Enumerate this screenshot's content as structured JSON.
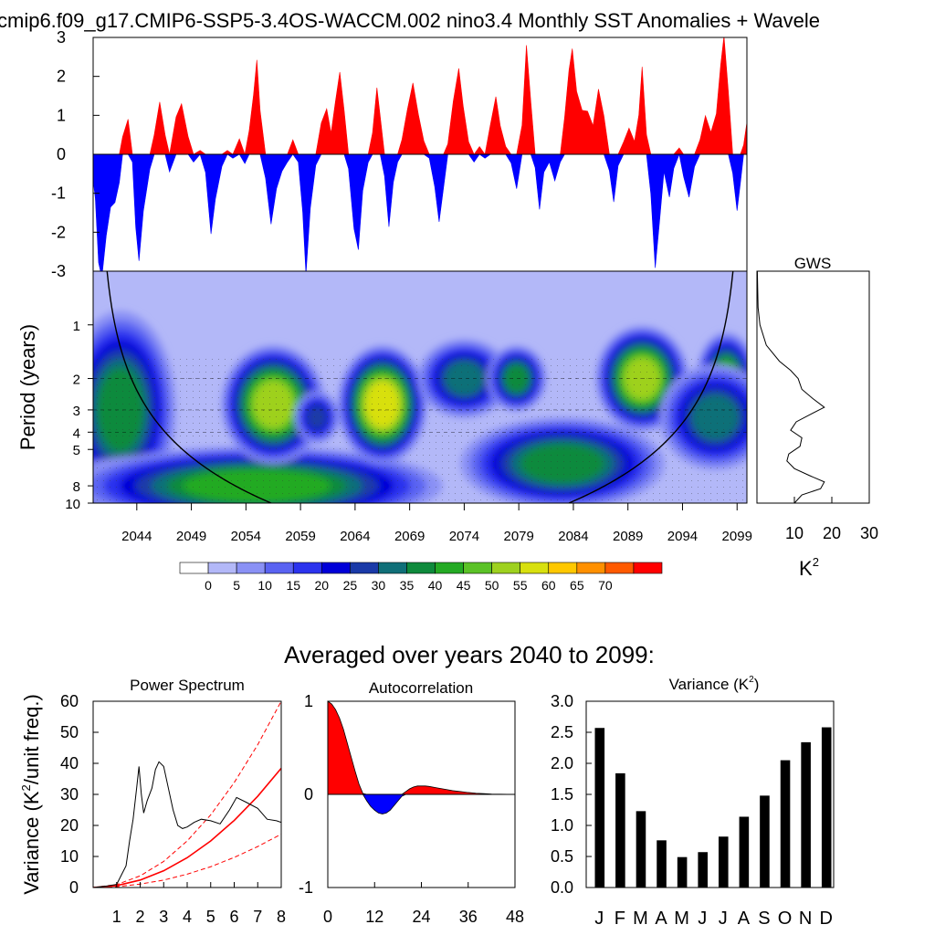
{
  "title": "cmip6.f09_g17.CMIP6-SSP5-3.4OS-WACCM.002 nino3.4 Monthly SST Anomalies + Wavele",
  "colors": {
    "positive": "#ff0000",
    "negative": "#0000ff",
    "wavelet_bg": "#b3b8f8"
  },
  "chart_data": [
    {
      "name": "sst-anomaly-timeseries",
      "type": "area",
      "xlim": [
        2040,
        2099.9
      ],
      "ylim": [
        -3,
        3
      ],
      "yticks": [
        "3",
        "2",
        "1",
        "0",
        "-1",
        "-2",
        "-3"
      ],
      "yticks_values": [
        3,
        2,
        1,
        0,
        -1,
        -2,
        -3
      ],
      "anchors": [
        [
          2040.0,
          -0.7
        ],
        [
          2040.2,
          -1.2
        ],
        [
          2040.5,
          -2.8
        ],
        [
          2040.8,
          -3.0
        ],
        [
          2041.2,
          -2.2
        ],
        [
          2041.6,
          -1.4
        ],
        [
          2042.0,
          -1.2
        ],
        [
          2042.4,
          -0.6
        ],
        [
          2042.7,
          0.3
        ],
        [
          2043.2,
          0.9
        ],
        [
          2043.6,
          -0.2
        ],
        [
          2043.9,
          -1.8
        ],
        [
          2044.2,
          -2.9
        ],
        [
          2044.6,
          -1.4
        ],
        [
          2045.2,
          -0.3
        ],
        [
          2045.6,
          0.5
        ],
        [
          2046.1,
          1.2
        ],
        [
          2046.6,
          0.6
        ],
        [
          2047.0,
          -0.4
        ],
        [
          2047.6,
          0.9
        ],
        [
          2048.1,
          1.2
        ],
        [
          2048.7,
          0.6
        ],
        [
          2049.2,
          -0.2
        ],
        [
          2049.8,
          0.1
        ],
        [
          2050.3,
          -0.5
        ],
        [
          2050.8,
          -1.9
        ],
        [
          2051.2,
          -1.2
        ],
        [
          2051.8,
          -0.4
        ],
        [
          2052.3,
          0.1
        ],
        [
          2052.8,
          -0.1
        ],
        [
          2053.4,
          0.3
        ],
        [
          2053.9,
          -0.3
        ],
        [
          2054.3,
          0.7
        ],
        [
          2054.7,
          1.6
        ],
        [
          2055.0,
          2.3
        ],
        [
          2055.3,
          1.1
        ],
        [
          2055.8,
          -0.5
        ],
        [
          2056.3,
          -1.8
        ],
        [
          2056.8,
          -1.0
        ],
        [
          2057.3,
          -0.4
        ],
        [
          2057.8,
          -0.2
        ],
        [
          2058.3,
          0.3
        ],
        [
          2058.8,
          -0.2
        ],
        [
          2059.2,
          -1.4
        ],
        [
          2059.5,
          -3.0
        ],
        [
          2059.9,
          -1.5
        ],
        [
          2060.4,
          -0.3
        ],
        [
          2060.9,
          0.9
        ],
        [
          2061.4,
          1.2
        ],
        [
          2061.8,
          0.4
        ],
        [
          2062.2,
          1.4
        ],
        [
          2062.6,
          2.2
        ],
        [
          2063.0,
          1.1
        ],
        [
          2063.4,
          -0.5
        ],
        [
          2063.9,
          -1.8
        ],
        [
          2064.3,
          -2.4
        ],
        [
          2064.7,
          -1.0
        ],
        [
          2065.2,
          -0.3
        ],
        [
          2065.6,
          0.7
        ],
        [
          2066.0,
          1.7
        ],
        [
          2066.3,
          0.9
        ],
        [
          2066.7,
          -0.6
        ],
        [
          2067.1,
          -1.7
        ],
        [
          2067.5,
          -0.8
        ],
        [
          2067.9,
          -0.2
        ],
        [
          2068.3,
          0.4
        ],
        [
          2068.8,
          1.3
        ],
        [
          2069.3,
          1.7
        ],
        [
          2069.8,
          1.0
        ],
        [
          2070.3,
          0.4
        ],
        [
          2070.8,
          -0.1
        ],
        [
          2071.3,
          -1.0
        ],
        [
          2071.7,
          -1.7
        ],
        [
          2072.1,
          -0.8
        ],
        [
          2072.5,
          0.3
        ],
        [
          2073.0,
          1.2
        ],
        [
          2073.5,
          2.3
        ],
        [
          2073.9,
          1.3
        ],
        [
          2074.4,
          0.3
        ],
        [
          2074.9,
          -0.2
        ],
        [
          2075.4,
          0.2
        ],
        [
          2075.9,
          -0.1
        ],
        [
          2076.4,
          0.7
        ],
        [
          2076.9,
          1.4
        ],
        [
          2077.3,
          0.9
        ],
        [
          2077.8,
          0.2
        ],
        [
          2078.3,
          -0.3
        ],
        [
          2078.8,
          -0.9
        ],
        [
          2079.3,
          0.9
        ],
        [
          2079.7,
          2.7
        ],
        [
          2080.1,
          1.3
        ],
        [
          2080.5,
          -0.3
        ],
        [
          2080.9,
          -1.3
        ],
        [
          2081.3,
          -0.6
        ],
        [
          2081.8,
          -0.2
        ],
        [
          2082.3,
          -0.6
        ],
        [
          2082.8,
          -0.2
        ],
        [
          2083.2,
          0.8
        ],
        [
          2083.6,
          2.2
        ],
        [
          2083.9,
          2.8
        ],
        [
          2084.3,
          1.6
        ],
        [
          2084.8,
          1.0
        ],
        [
          2085.3,
          1.2
        ],
        [
          2085.8,
          0.8
        ],
        [
          2086.3,
          1.6
        ],
        [
          2086.8,
          0.9
        ],
        [
          2087.3,
          -0.3
        ],
        [
          2087.7,
          -1.2
        ],
        [
          2088.1,
          -0.4
        ],
        [
          2088.6,
          0.3
        ],
        [
          2089.1,
          0.8
        ],
        [
          2089.6,
          0.3
        ],
        [
          2090.0,
          0.9
        ],
        [
          2090.3,
          2.3
        ],
        [
          2090.7,
          0.6
        ],
        [
          2091.1,
          -1.1
        ],
        [
          2091.5,
          -3.0
        ],
        [
          2091.9,
          -1.6
        ],
        [
          2092.3,
          -0.4
        ],
        [
          2092.8,
          -1.2
        ],
        [
          2093.2,
          -0.4
        ],
        [
          2093.7,
          0.3
        ],
        [
          2094.1,
          -0.6
        ],
        [
          2094.6,
          -1.2
        ],
        [
          2095.1,
          -0.3
        ],
        [
          2095.6,
          0.5
        ],
        [
          2096.1,
          0.9
        ],
        [
          2096.6,
          0.5
        ],
        [
          2097.1,
          1.1
        ],
        [
          2097.5,
          2.4
        ],
        [
          2097.8,
          2.9
        ],
        [
          2098.2,
          1.6
        ],
        [
          2098.6,
          -0.4
        ],
        [
          2099.0,
          -1.4
        ],
        [
          2099.3,
          -0.9
        ],
        [
          2099.6,
          0.3
        ],
        [
          2099.9,
          0.9
        ]
      ]
    },
    {
      "name": "wavelet-power-spectrum",
      "type": "heatmap",
      "ylabel": "Period (years)",
      "yticks": [
        "1",
        "2",
        "3",
        "4",
        "5",
        "8",
        "10"
      ],
      "yticks_values": [
        1,
        2,
        3,
        4,
        5,
        8,
        10
      ],
      "ylim": [
        0.5,
        10
      ],
      "xticks": [
        "2044",
        "2049",
        "2054",
        "2059",
        "2064",
        "2069",
        "2074",
        "2079",
        "2084",
        "2089",
        "2094",
        "2099"
      ],
      "xticks_values": [
        2044,
        2049,
        2054,
        2059,
        2064,
        2069,
        2074,
        2079,
        2084,
        2089,
        2094,
        2099
      ],
      "colorbar_labels": [
        "0",
        "5",
        "10",
        "15",
        "20",
        "25",
        "30",
        "35",
        "40",
        "45",
        "50",
        "55",
        "60",
        "65",
        "70"
      ],
      "colorbar_colors": [
        "#ffffff",
        "#b3b8f8",
        "#8a91f5",
        "#5a63f2",
        "#2b33ee",
        "#0000d8",
        "#1a3aa8",
        "#106f78",
        "#0f8a3c",
        "#24aa24",
        "#5bc227",
        "#9ed11f",
        "#d8e00f",
        "#ffc800",
        "#ff9000",
        "#ff5a00",
        "#ff0000"
      ],
      "blobs": [
        {
          "x": 2042.5,
          "period": 3.0,
          "rx": 3.0,
          "ry": 0.3,
          "level": 8
        },
        {
          "x": 2045.5,
          "period": 9.0,
          "rx": 6.0,
          "ry": 0.12,
          "level": 8
        },
        {
          "x": 2055.0,
          "period": 8.0,
          "rx": 10.0,
          "ry": 0.12,
          "level": 9
        },
        {
          "x": 2056.5,
          "period": 2.8,
          "rx": 2.8,
          "ry": 0.18,
          "level": 11
        },
        {
          "x": 2060.5,
          "period": 3.3,
          "rx": 1.2,
          "ry": 0.08,
          "level": 6
        },
        {
          "x": 2066.5,
          "period": 2.8,
          "rx": 2.4,
          "ry": 0.18,
          "level": 12
        },
        {
          "x": 2074.0,
          "period": 2.0,
          "rx": 2.5,
          "ry": 0.12,
          "level": 7
        },
        {
          "x": 2078.8,
          "period": 2.0,
          "rx": 1.6,
          "ry": 0.1,
          "level": 8
        },
        {
          "x": 2083.0,
          "period": 6.0,
          "rx": 5.5,
          "ry": 0.14,
          "level": 8
        },
        {
          "x": 2090.3,
          "period": 2.0,
          "rx": 2.5,
          "ry": 0.16,
          "level": 11
        },
        {
          "x": 2098.0,
          "period": 2.0,
          "rx": 1.6,
          "ry": 0.14,
          "level": 9
        },
        {
          "x": 2097.0,
          "period": 3.3,
          "rx": 3.0,
          "ry": 0.16,
          "level": 7
        }
      ]
    },
    {
      "name": "global-wavelet-spectrum",
      "type": "line",
      "title": "GWS",
      "xlabel": "K²",
      "xticks": [
        "10",
        "20",
        "30"
      ],
      "xticks_values": [
        10,
        20,
        30
      ],
      "xlim": [
        0,
        30
      ],
      "points": [
        [
          0.5,
          0.1
        ],
        [
          0.8,
          0.3
        ],
        [
          1.0,
          0.8
        ],
        [
          1.3,
          2.5
        ],
        [
          1.6,
          6
        ],
        [
          1.8,
          9
        ],
        [
          2.0,
          11
        ],
        [
          2.3,
          12
        ],
        [
          2.6,
          15
        ],
        [
          2.9,
          18
        ],
        [
          3.2,
          14
        ],
        [
          3.5,
          10.5
        ],
        [
          3.9,
          9
        ],
        [
          4.3,
          12
        ],
        [
          4.8,
          11.5
        ],
        [
          5.3,
          8.5
        ],
        [
          5.8,
          8
        ],
        [
          6.4,
          10
        ],
        [
          7.0,
          14
        ],
        [
          7.6,
          18
        ],
        [
          8.3,
          17
        ],
        [
          9.0,
          12
        ],
        [
          10.0,
          10
        ]
      ]
    },
    {
      "name": "power-spectrum",
      "type": "line",
      "title": "Power Spectrum",
      "ylabel": "Variance (K²/unit freq.)",
      "xticks": [
        "1",
        "2",
        "3",
        "4",
        "5",
        "6",
        "7",
        "8"
      ],
      "xticks_values": [
        1,
        2,
        3,
        4,
        5,
        6,
        7,
        8
      ],
      "yticks": [
        "0",
        "10",
        "20",
        "30",
        "40",
        "50",
        "60"
      ],
      "yticks_values": [
        0,
        10,
        20,
        30,
        40,
        50,
        60
      ],
      "xlim": [
        0,
        8
      ],
      "ylim": [
        0,
        60
      ],
      "spectrum": [
        [
          0.0,
          0
        ],
        [
          0.6,
          0.5
        ],
        [
          1.0,
          1
        ],
        [
          1.2,
          4
        ],
        [
          1.4,
          7
        ],
        [
          1.55,
          15
        ],
        [
          1.7,
          22
        ],
        [
          1.85,
          32
        ],
        [
          1.95,
          39
        ],
        [
          2.05,
          30
        ],
        [
          2.15,
          24
        ],
        [
          2.3,
          28
        ],
        [
          2.5,
          32
        ],
        [
          2.65,
          38
        ],
        [
          2.8,
          40.5
        ],
        [
          3.0,
          39
        ],
        [
          3.2,
          32
        ],
        [
          3.4,
          25
        ],
        [
          3.6,
          20
        ],
        [
          3.8,
          19
        ],
        [
          4.0,
          19.5
        ],
        [
          4.3,
          21
        ],
        [
          4.6,
          22
        ],
        [
          5.0,
          21.5
        ],
        [
          5.4,
          20.5
        ],
        [
          5.8,
          25
        ],
        [
          6.1,
          29
        ],
        [
          6.5,
          27.5
        ],
        [
          7.0,
          25.5
        ],
        [
          7.4,
          22
        ],
        [
          7.8,
          21.5
        ],
        [
          8.0,
          21
        ]
      ],
      "red_noise": [
        [
          0,
          0
        ],
        [
          1,
          0.6
        ],
        [
          2,
          2.4
        ],
        [
          3,
          5.4
        ],
        [
          4,
          9.6
        ],
        [
          5,
          15
        ],
        [
          6,
          21.6
        ],
        [
          7,
          29.4
        ],
        [
          8,
          38.4
        ]
      ],
      "upper_bound": [
        [
          0,
          0
        ],
        [
          1,
          0.94
        ],
        [
          2,
          3.75
        ],
        [
          3,
          8.4
        ],
        [
          4,
          15
        ],
        [
          5,
          23.4
        ],
        [
          6,
          33.8
        ],
        [
          7,
          46
        ],
        [
          8,
          60
        ]
      ],
      "lower_bound": [
        [
          0,
          0
        ],
        [
          1,
          0.27
        ],
        [
          2,
          1.1
        ],
        [
          3,
          2.4
        ],
        [
          4,
          4.3
        ],
        [
          5,
          6.7
        ],
        [
          6,
          9.7
        ],
        [
          7,
          13.2
        ],
        [
          8,
          17.2
        ]
      ]
    },
    {
      "name": "autocorrelation",
      "type": "area",
      "title": "Autocorrelation",
      "xticks": [
        "0",
        "12",
        "24",
        "36",
        "48"
      ],
      "xticks_values": [
        0,
        12,
        24,
        36,
        48
      ],
      "yticks": [
        "1",
        "0",
        "-1"
      ],
      "yticks_values": [
        1,
        0,
        -1
      ],
      "xlim": [
        0,
        48
      ],
      "ylim": [
        -1,
        1
      ],
      "points": [
        [
          0,
          1.0
        ],
        [
          1,
          0.97
        ],
        [
          2,
          0.91
        ],
        [
          3,
          0.82
        ],
        [
          4,
          0.7
        ],
        [
          5,
          0.55
        ],
        [
          6,
          0.4
        ],
        [
          7,
          0.25
        ],
        [
          8,
          0.11
        ],
        [
          9,
          0.01
        ],
        [
          10,
          -0.07
        ],
        [
          11,
          -0.13
        ],
        [
          12,
          -0.17
        ],
        [
          13,
          -0.2
        ],
        [
          14,
          -0.21
        ],
        [
          15,
          -0.2
        ],
        [
          16,
          -0.17
        ],
        [
          17,
          -0.12
        ],
        [
          18,
          -0.07
        ],
        [
          19,
          -0.02
        ],
        [
          20,
          0.03
        ],
        [
          21,
          0.06
        ],
        [
          22,
          0.08
        ],
        [
          23,
          0.09
        ],
        [
          24,
          0.09
        ],
        [
          25,
          0.09
        ],
        [
          26,
          0.085
        ],
        [
          28,
          0.07
        ],
        [
          30,
          0.055
        ],
        [
          32,
          0.04
        ],
        [
          34,
          0.03
        ],
        [
          36,
          0.02
        ],
        [
          38,
          0.012
        ],
        [
          40,
          0.008
        ],
        [
          42,
          0.004
        ],
        [
          44,
          0.002
        ],
        [
          46,
          0.001
        ],
        [
          48,
          0.0
        ]
      ]
    },
    {
      "name": "monthly-variance",
      "type": "bar",
      "title": "Variance (K²)",
      "categories": [
        "J",
        "F",
        "M",
        "A",
        "M",
        "J",
        "J",
        "A",
        "S",
        "O",
        "N",
        "D"
      ],
      "values": [
        2.57,
        1.84,
        1.23,
        0.76,
        0.49,
        0.57,
        0.82,
        1.14,
        1.48,
        2.05,
        2.34,
        2.58
      ],
      "yticks": [
        "3.0",
        "2.5",
        "2.0",
        "1.5",
        "1.0",
        "0.5",
        "0.0"
      ],
      "yticks_values": [
        3.0,
        2.5,
        2.0,
        1.5,
        1.0,
        0.5,
        0.0
      ],
      "ylim": [
        0,
        3
      ]
    }
  ],
  "section_heading": "Averaged over years 2040 to 2099:"
}
